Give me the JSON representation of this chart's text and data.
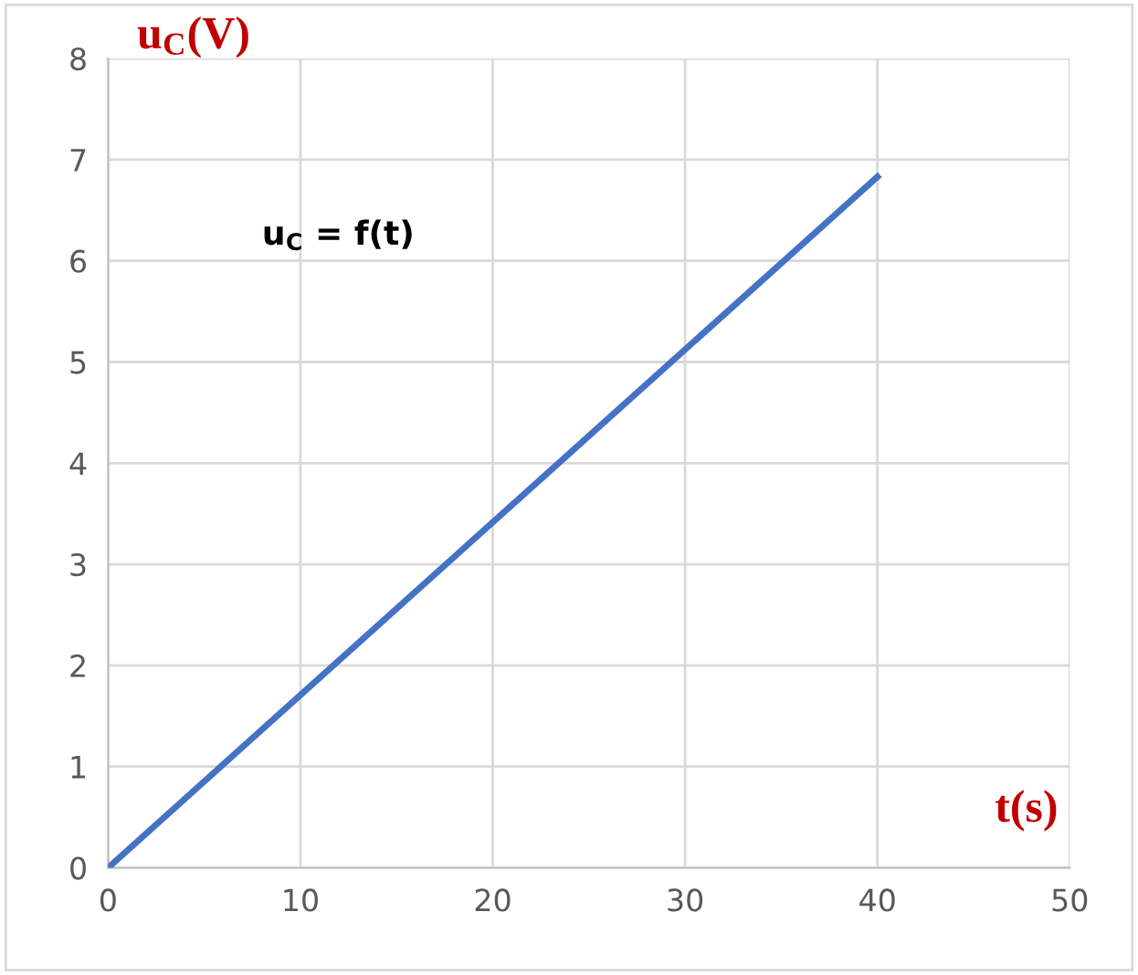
{
  "chart_data": {
    "type": "line",
    "ylabel": "u$_{C}$(V)",
    "xlabel": "t(s)",
    "annotations": [
      "u$_{C}$ = f(t)"
    ],
    "x": [
      0,
      40
    ],
    "series": [
      {
        "color": "#4472c4",
        "values": [
          0,
          6.83
        ]
      }
    ],
    "xlim": [
      0,
      50
    ],
    "ylim": [
      0,
      8
    ],
    "xticks": [
      0,
      10,
      20,
      30,
      40,
      50
    ],
    "yticks": [
      0,
      1,
      2,
      3,
      4,
      5,
      6,
      7,
      8
    ],
    "grid": true,
    "marker": "none",
    "line_style": "solid"
  }
}
